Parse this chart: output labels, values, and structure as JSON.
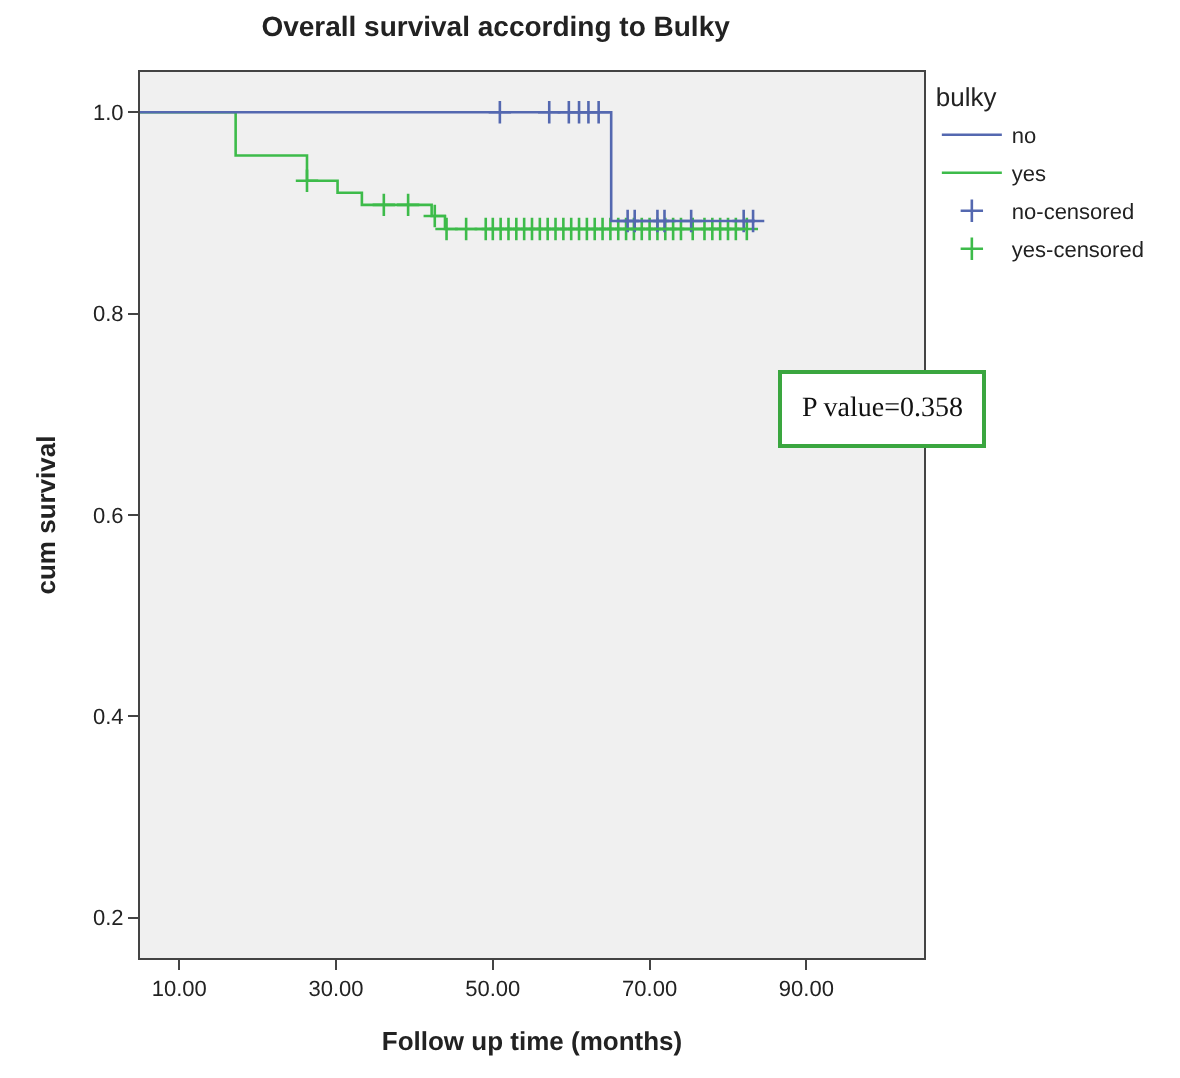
{
  "chart_data": {
    "type": "step",
    "title": "Overall survival according to Bulky",
    "xlabel": "Follow up time (months)",
    "ylabel": "cum survival",
    "legend_title": "bulky",
    "xlim": [
      5,
      105
    ],
    "ylim": [
      0.16,
      1.04
    ],
    "xticks": [
      {
        "value": 10,
        "label": "10.00"
      },
      {
        "value": 30,
        "label": "30.00"
      },
      {
        "value": 50,
        "label": "50.00"
      },
      {
        "value": 70,
        "label": "70.00"
      },
      {
        "value": 90,
        "label": "90.00"
      }
    ],
    "yticks": [
      0.2,
      0.4,
      0.6,
      0.8,
      {
        "value": 1,
        "label": "1.0"
      }
    ],
    "grid": false,
    "legend": "top right",
    "marker": "none",
    "series": [
      {
        "name": "no",
        "color": "#5468b0",
        "x": [
          5,
          65.1,
          83.4
        ],
        "values": [
          1.0,
          0.892,
          0.892
        ]
      },
      {
        "name": "yes",
        "color": "#3dbb4a",
        "x": [
          5,
          17.2,
          26.3,
          30.2,
          33.3,
          42.2,
          43.9,
          82.4
        ],
        "values": [
          1.0,
          0.957,
          0.932,
          0.92,
          0.908,
          0.897,
          0.884,
          0.884
        ]
      },
      {
        "name": "no-censored",
        "type": "scatter",
        "marker": "cross",
        "color": "#5468b0",
        "x": [
          50.9,
          57.2,
          59.7,
          61,
          62.2,
          63.5,
          67.2,
          68.1,
          71,
          71.9,
          75.3,
          82,
          83.2
        ],
        "values": [
          1,
          1,
          1,
          1,
          1,
          1,
          0.892,
          0.892,
          0.892,
          0.892,
          0.892,
          0.892,
          0.892
        ]
      },
      {
        "name": "yes-censored",
        "type": "scatter",
        "marker": "cross",
        "color": "#3dbb4a",
        "x": [
          26.3,
          36.1,
          39.2,
          42.6,
          44.1,
          46.6,
          49.1,
          50,
          51,
          52,
          53,
          54,
          55,
          56,
          57,
          58,
          59,
          60,
          61,
          62,
          63,
          64,
          65,
          66,
          67,
          68,
          69,
          70,
          71,
          72,
          73,
          74,
          75.5,
          77,
          78,
          79,
          80,
          81,
          82.4
        ],
        "values": [
          0.932,
          0.908,
          0.908,
          0.897,
          0.884,
          0.884,
          0.884,
          0.884,
          0.884,
          0.884,
          0.884,
          0.884,
          0.884,
          0.884,
          0.884,
          0.884,
          0.884,
          0.884,
          0.884,
          0.884,
          0.884,
          0.884,
          0.884,
          0.884,
          0.884,
          0.884,
          0.884,
          0.884,
          0.884,
          0.884,
          0.884,
          0.884,
          0.884,
          0.884,
          0.884,
          0.884,
          0.884,
          0.884,
          0.884
        ]
      }
    ],
    "annotations": [
      "P value=0.358"
    ]
  }
}
